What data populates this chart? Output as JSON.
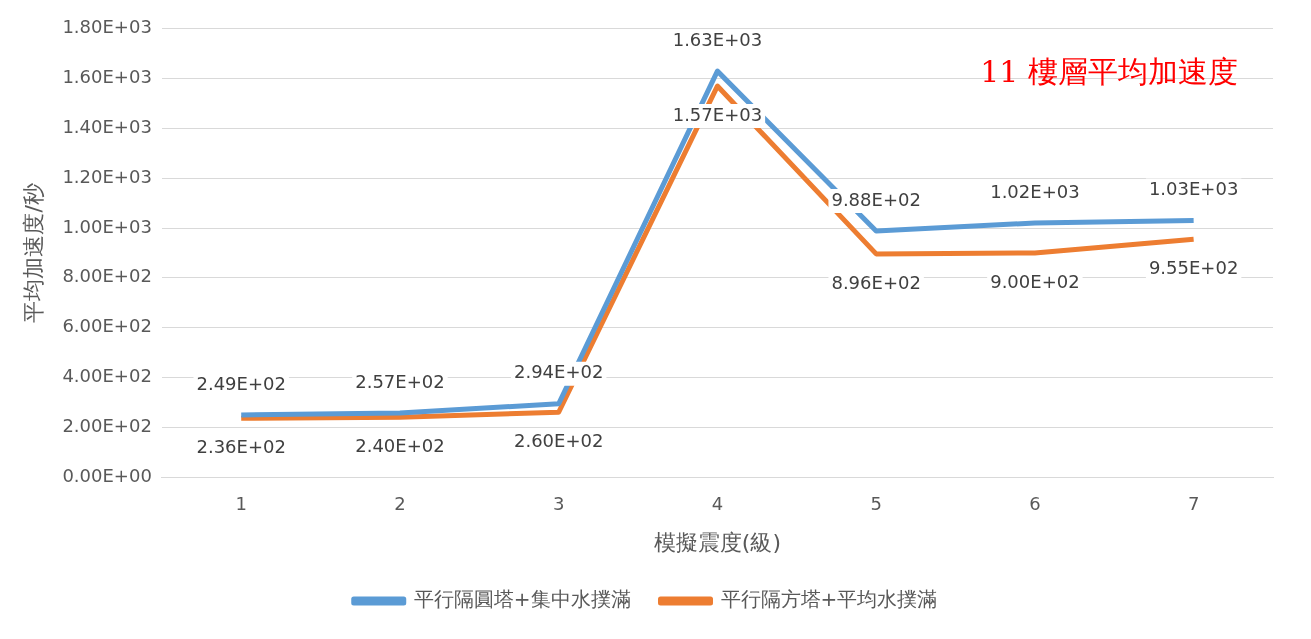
{
  "chart_data": {
    "type": "line",
    "title": "11 樓層平均加速度",
    "xlabel": "模擬震度(級)",
    "ylabel": "平均加速度/秒",
    "categories": [
      "1",
      "2",
      "3",
      "4",
      "5",
      "6",
      "7"
    ],
    "series": [
      {
        "name": "平行隔圓塔+集中水撲滿",
        "color": "#5b9bd5",
        "values": [
          249,
          257,
          294,
          1630,
          988,
          1020,
          1030
        ],
        "value_labels": [
          "2.49E+02",
          "2.57E+02",
          "2.94E+02",
          "1.63E+03",
          "9.88E+02",
          "1.02E+03",
          "1.03E+03"
        ]
      },
      {
        "name": "平行隔方塔+平均水撲滿",
        "color": "#ed7d31",
        "values": [
          236,
          240,
          260,
          1570,
          896,
          900,
          955
        ],
        "value_labels": [
          "2.36E+02",
          "2.40E+02",
          "2.60E+02",
          "1.57E+03",
          "8.96E+02",
          "9.00E+02",
          "9.55E+02"
        ]
      }
    ],
    "ylim": [
      0,
      1800
    ],
    "yticks": [
      {
        "value": 0,
        "label": "0.00E+00"
      },
      {
        "value": 200,
        "label": "2.00E+02"
      },
      {
        "value": 400,
        "label": "4.00E+02"
      },
      {
        "value": 600,
        "label": "6.00E+02"
      },
      {
        "value": 800,
        "label": "8.00E+02"
      },
      {
        "value": 1000,
        "label": "1.00E+03"
      },
      {
        "value": 1200,
        "label": "1.20E+03"
      },
      {
        "value": 1400,
        "label": "1.40E+03"
      },
      {
        "value": 1600,
        "label": "1.60E+03"
      },
      {
        "value": 1800,
        "label": "1.80E+03"
      }
    ],
    "grid": "y",
    "legend": "bottom",
    "marker": "none",
    "line_style": "solid"
  }
}
